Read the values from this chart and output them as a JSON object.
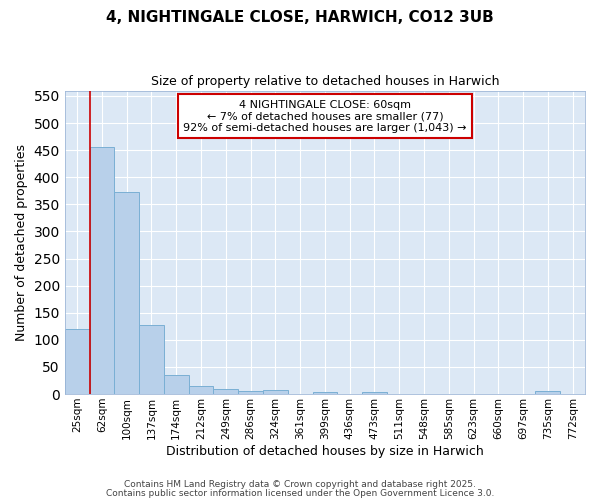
{
  "title": "4, NIGHTINGALE CLOSE, HARWICH, CO12 3UB",
  "subtitle": "Size of property relative to detached houses in Harwich",
  "xlabel": "Distribution of detached houses by size in Harwich",
  "ylabel": "Number of detached properties",
  "categories": [
    "25sqm",
    "62sqm",
    "100sqm",
    "137sqm",
    "174sqm",
    "212sqm",
    "249sqm",
    "286sqm",
    "324sqm",
    "361sqm",
    "399sqm",
    "436sqm",
    "473sqm",
    "511sqm",
    "548sqm",
    "585sqm",
    "623sqm",
    "660sqm",
    "697sqm",
    "735sqm",
    "772sqm"
  ],
  "values": [
    120,
    455,
    373,
    128,
    35,
    15,
    10,
    5,
    7,
    0,
    3,
    0,
    3,
    0,
    0,
    0,
    0,
    0,
    0,
    5,
    0
  ],
  "bar_color": "#b8d0ea",
  "bar_edge_color": "#7aafd4",
  "bg_color": "#dce8f5",
  "grid_color": "#ffffff",
  "vline_color": "#cc0000",
  "vline_x_index": 1,
  "annotation_text": "4 NIGHTINGALE CLOSE: 60sqm\n← 7% of detached houses are smaller (77)\n92% of semi-detached houses are larger (1,043) →",
  "annotation_box_facecolor": "#ffffff",
  "annotation_box_edgecolor": "#cc0000",
  "ylim": [
    0,
    560
  ],
  "yticks": [
    0,
    50,
    100,
    150,
    200,
    250,
    300,
    350,
    400,
    450,
    500,
    550
  ],
  "fig_facecolor": "#ffffff",
  "title_fontsize": 11,
  "subtitle_fontsize": 9,
  "footnote1": "Contains HM Land Registry data © Crown copyright and database right 2025.",
  "footnote2": "Contains public sector information licensed under the Open Government Licence 3.0."
}
